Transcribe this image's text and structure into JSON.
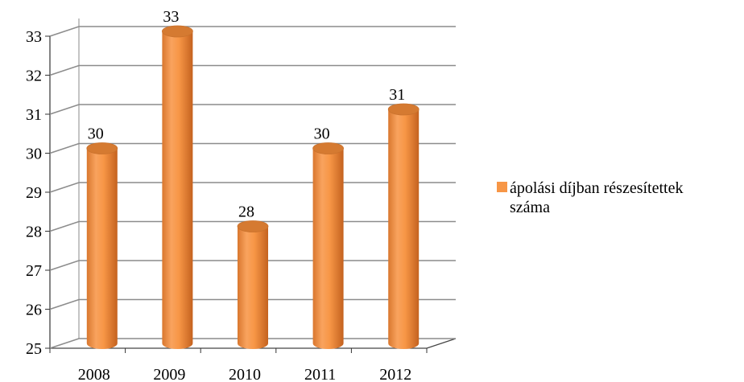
{
  "chart_data": {
    "type": "bar",
    "categories": [
      "2008",
      "2009",
      "2010",
      "2011",
      "2012"
    ],
    "series": [
      {
        "name": "ápolási díjban részesítettek száma",
        "values": [
          30,
          33,
          28,
          30,
          31
        ]
      }
    ],
    "data_labels": [
      "30",
      "33",
      "28",
      "30",
      "31"
    ],
    "y_ticks": [
      "25",
      "26",
      "27",
      "28",
      "29",
      "30",
      "31",
      "32",
      "33"
    ],
    "ylim": [
      25,
      33
    ],
    "grid": true,
    "legend_position": "right",
    "bar_color": "#F79646",
    "bar_shape": "cylinder"
  },
  "legend": {
    "line1": "ápolási díjban részesítettek",
    "line2": "száma"
  }
}
